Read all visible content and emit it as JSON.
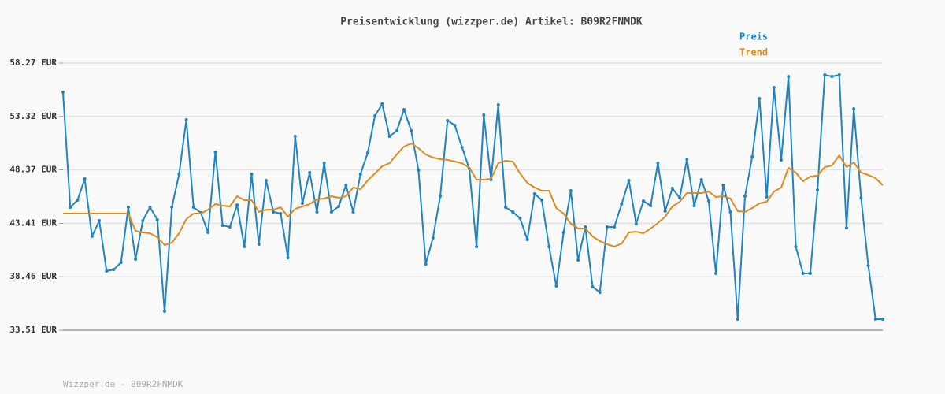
{
  "chart_data": {
    "type": "line",
    "title": "Preisentwicklung (wizzper.de) Artikel: B09R2FNMDK",
    "footer": "Wizzper.de - B09R2FNMDK",
    "ylim": [
      33.51,
      58.27
    ],
    "yticks": [
      {
        "value": 33.51,
        "label": "33.51 EUR"
      },
      {
        "value": 38.46,
        "label": "38.46 EUR"
      },
      {
        "value": 43.41,
        "label": "43.41 EUR"
      },
      {
        "value": 48.37,
        "label": "48.37 EUR"
      },
      {
        "value": 53.32,
        "label": "53.32 EUR"
      },
      {
        "value": 58.27,
        "label": "58.27 EUR"
      }
    ],
    "grid": true,
    "legend": "top-right",
    "series": [
      {
        "name": "Preis",
        "color": "#1f84c6",
        "markers": true,
        "values": [
          55.57,
          44.9,
          45.56,
          47.53,
          42.2,
          43.66,
          38.99,
          39.13,
          39.79,
          44.9,
          40.08,
          43.66,
          44.9,
          43.74,
          35.26,
          44.9,
          47.97,
          53.01,
          44.9,
          44.39,
          42.57,
          50.02,
          43.22,
          43.08,
          45.12,
          41.25,
          47.97,
          41.47,
          47.39,
          44.47,
          44.32,
          40.23,
          51.48,
          45.27,
          48.12,
          44.47,
          48.99,
          44.47,
          44.98,
          46.95,
          44.47,
          47.97,
          49.94,
          53.38,
          54.47,
          51.48,
          51.99,
          53.96,
          51.99,
          48.34,
          39.64,
          42.06,
          45.93,
          52.94,
          52.5,
          50.45,
          48.48,
          41.25,
          53.45,
          47.46,
          54.4,
          44.9,
          44.47,
          43.88,
          41.91,
          46.15,
          45.56,
          41.25,
          37.6,
          42.57,
          46.44,
          40.01,
          43.08,
          37.53,
          37.02,
          43.08,
          43.08,
          45.2,
          47.39,
          43.37,
          45.49,
          45.05,
          48.99,
          44.54,
          46.66,
          45.78,
          49.36,
          45.05,
          47.46,
          45.49,
          38.77,
          46.95,
          44.47,
          34.53,
          45.93,
          49.58,
          54.98,
          45.85,
          56.01,
          49.29,
          57.03,
          41.25,
          38.77,
          38.77,
          46.51,
          57.17,
          57.03,
          57.17,
          43.0,
          54.03,
          45.78,
          39.5,
          34.53,
          34.53
        ]
      },
      {
        "name": "Trend",
        "color": "#e08a1e",
        "markers": false,
        "values": [
          44.32,
          44.32,
          44.32,
          44.32,
          44.32,
          44.32,
          44.32,
          44.32,
          44.32,
          44.32,
          42.71,
          42.57,
          42.49,
          42.13,
          41.4,
          41.62,
          42.49,
          43.81,
          44.32,
          44.32,
          44.68,
          45.2,
          45.05,
          44.98,
          45.93,
          45.56,
          45.56,
          44.47,
          44.68,
          44.68,
          44.9,
          44.03,
          44.76,
          44.98,
          45.2,
          45.63,
          45.71,
          45.93,
          45.78,
          45.93,
          46.73,
          46.58,
          47.39,
          48.04,
          48.7,
          48.99,
          49.8,
          50.53,
          50.82,
          50.38,
          49.8,
          49.51,
          49.36,
          49.29,
          49.14,
          48.99,
          48.56,
          47.46,
          47.46,
          47.53,
          48.99,
          49.21,
          49.14,
          48.04,
          47.17,
          46.73,
          46.44,
          46.44,
          44.83,
          44.32,
          43.37,
          42.93,
          42.93,
          42.2,
          41.76,
          41.47,
          41.25,
          41.54,
          42.57,
          42.64,
          42.49,
          42.93,
          43.44,
          44.03,
          44.98,
          45.41,
          46.22,
          46.22,
          46.22,
          46.36,
          45.85,
          45.93,
          45.71,
          44.54,
          44.47,
          44.83,
          45.27,
          45.41,
          46.36,
          46.73,
          48.56,
          48.12,
          47.31,
          47.75,
          47.83,
          48.63,
          48.77,
          49.72,
          48.63,
          49.07,
          48.12,
          47.9,
          47.61,
          46.95
        ]
      }
    ]
  }
}
